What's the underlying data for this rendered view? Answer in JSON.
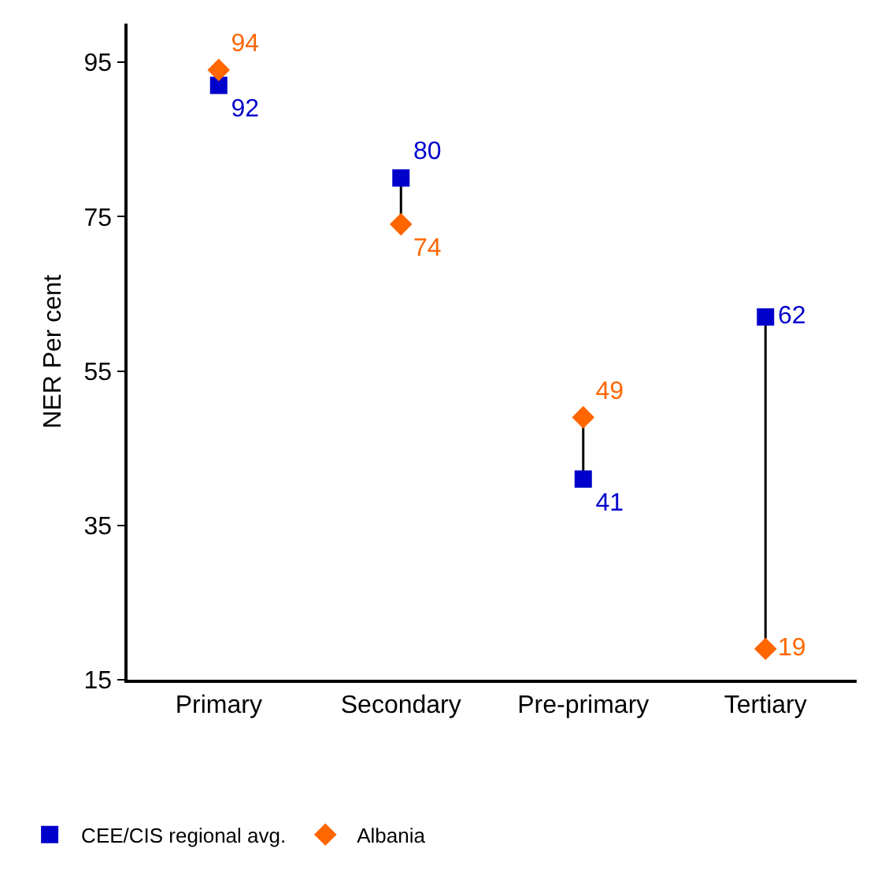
{
  "chart_data": {
    "type": "scatter",
    "ylabel": "NER Per cent",
    "categories": [
      "Primary",
      "Secondary",
      "Pre-primary",
      "Tertiary"
    ],
    "series": [
      {
        "name": "CEE/CIS regional avg.",
        "color": "#0000cc",
        "marker": "square",
        "values": [
          92,
          80,
          41,
          62
        ]
      },
      {
        "name": "Albania",
        "color": "#ff6600",
        "marker": "diamond",
        "values": [
          94,
          74,
          49,
          19
        ]
      }
    ],
    "ylim": [
      15,
      100
    ],
    "yticks": [
      15,
      35,
      55,
      75,
      95
    ],
    "grid": false,
    "legend": "bottom left",
    "data_labels": true
  }
}
